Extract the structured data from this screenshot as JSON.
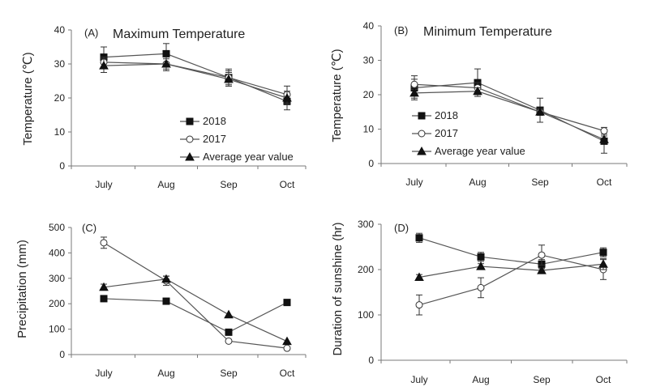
{
  "chart_data": [
    {
      "tag": "(A)",
      "title": "Maximum Temperature",
      "type": "line",
      "ylabel": "Temperature (℃)",
      "xlabel": "",
      "categories": [
        "July",
        "Aug",
        "Sep",
        "Oct"
      ],
      "ylim": [
        0,
        40
      ],
      "yticks": [
        0,
        10,
        20,
        30,
        40
      ],
      "legend": "center",
      "series": [
        {
          "name": "2018",
          "marker": "square",
          "values": [
            32,
            33,
            26,
            19
          ],
          "errors": [
            3,
            3,
            2.5,
            2.5
          ]
        },
        {
          "name": "2017",
          "marker": "circle",
          "values": [
            30.5,
            30,
            26,
            21
          ],
          "errors": [
            1.5,
            1.5,
            2,
            2.5
          ]
        },
        {
          "name": "Average year value",
          "marker": "triangle",
          "values": [
            29.5,
            30,
            25.5,
            20
          ],
          "errors": [
            2,
            2,
            2,
            2
          ]
        }
      ]
    },
    {
      "tag": "(B)",
      "title": "Minimum Temperature",
      "type": "line",
      "ylabel": "Temperature (℃)",
      "xlabel": "",
      "categories": [
        "July",
        "Aug",
        "Sep",
        "Oct"
      ],
      "ylim": [
        0,
        40
      ],
      "yticks": [
        0,
        10,
        20,
        30,
        40
      ],
      "legend": "center-left",
      "series": [
        {
          "name": "2018",
          "marker": "square",
          "values": [
            22,
            23.5,
            15.5,
            6.5
          ],
          "errors": [
            3.5,
            4,
            3.5,
            3.5
          ]
        },
        {
          "name": "2017",
          "marker": "circle",
          "values": [
            23,
            22,
            15,
            9.5
          ],
          "errors": [
            1.5,
            1.5,
            1,
            1
          ]
        },
        {
          "name": "Average year value",
          "marker": "triangle",
          "values": [
            20.5,
            21,
            15,
            7
          ],
          "errors": [
            1.5,
            1,
            1,
            1
          ]
        }
      ]
    },
    {
      "tag": "(C)",
      "title": "",
      "type": "line",
      "ylabel": "Precipitation (mm)",
      "xlabel": "",
      "categories": [
        "July",
        "Aug",
        "Sep",
        "Oct"
      ],
      "ylim": [
        0,
        500
      ],
      "yticks": [
        0,
        100,
        200,
        300,
        400,
        500
      ],
      "legend": "none",
      "series": [
        {
          "name": "2018",
          "marker": "square",
          "values": [
            220,
            210,
            88,
            205
          ],
          "errors": [
            0,
            0,
            0,
            0
          ]
        },
        {
          "name": "2017",
          "marker": "circle",
          "values": [
            440,
            290,
            53,
            25
          ],
          "errors": [
            22,
            18,
            0,
            0
          ]
        },
        {
          "name": "Average year value",
          "marker": "triangle",
          "values": [
            265,
            297,
            157,
            52
          ],
          "errors": [
            12,
            12,
            0,
            0
          ]
        }
      ]
    },
    {
      "tag": "(D)",
      "title": "",
      "type": "line",
      "ylabel": "Duration of sunshine (hr)",
      "xlabel": "",
      "categories": [
        "July",
        "Aug",
        "Sep",
        "Oct"
      ],
      "ylim": [
        0,
        300
      ],
      "yticks": [
        0,
        100,
        200,
        300
      ],
      "legend": "none",
      "series": [
        {
          "name": "2018",
          "marker": "square",
          "values": [
            270,
            228,
            212,
            238
          ],
          "errors": [
            10,
            10,
            10,
            10
          ]
        },
        {
          "name": "2017",
          "marker": "circle",
          "values": [
            122,
            160,
            232,
            200
          ],
          "errors": [
            22,
            22,
            22,
            22
          ]
        },
        {
          "name": "Average year value",
          "marker": "triangle",
          "values": [
            183,
            207,
            198,
            212
          ],
          "errors": [
            6,
            6,
            6,
            12
          ]
        }
      ]
    }
  ]
}
